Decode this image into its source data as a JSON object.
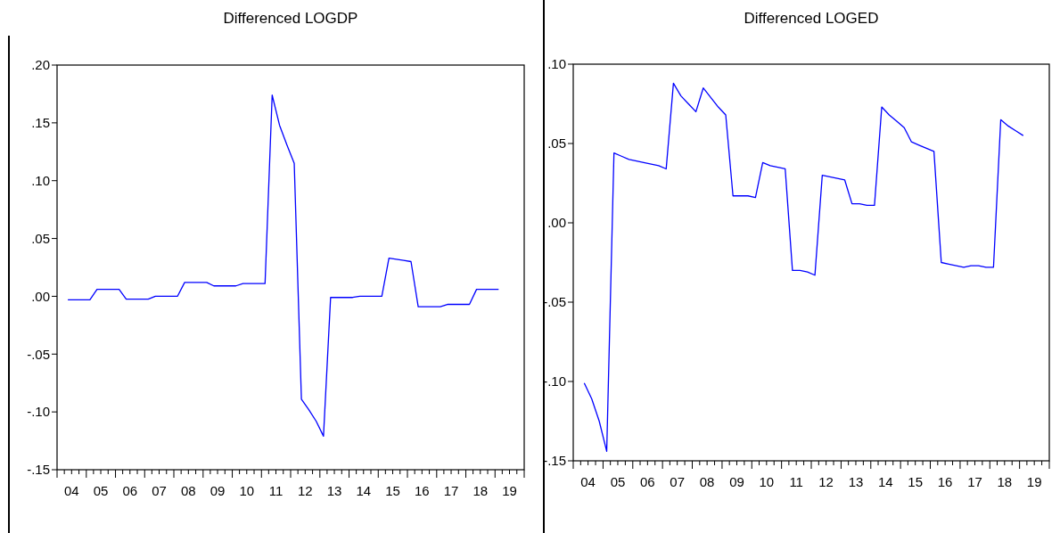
{
  "chart_data": [
    {
      "type": "line",
      "title": "Differenced LOGDP",
      "xlim": [
        "2004",
        "2020"
      ],
      "ylim": [
        -0.15,
        0.2
      ],
      "xticks": [
        {
          "value": "2004-07-01",
          "label": "04"
        },
        {
          "value": "2005-07-01",
          "label": "05"
        },
        {
          "value": "2006-07-01",
          "label": "06"
        },
        {
          "value": "2007-07-01",
          "label": "07"
        },
        {
          "value": "2008-07-01",
          "label": "08"
        },
        {
          "value": "2009-07-01",
          "label": "09"
        },
        {
          "value": "2010-07-01",
          "label": "10"
        },
        {
          "value": "2011-07-01",
          "label": "11"
        },
        {
          "value": "2012-07-01",
          "label": "12"
        },
        {
          "value": "2013-07-01",
          "label": "13"
        },
        {
          "value": "2014-07-01",
          "label": "14"
        },
        {
          "value": "2015-07-01",
          "label": "15"
        },
        {
          "value": "2016-07-01",
          "label": "16"
        },
        {
          "value": "2017-07-01",
          "label": "17"
        },
        {
          "value": "2018-07-01",
          "label": "18"
        },
        {
          "value": "2019-07-01",
          "label": "19"
        }
      ],
      "yticks": [
        {
          "value": -0.15,
          "label": "-.15"
        },
        {
          "value": -0.1,
          "label": "-.10"
        },
        {
          "value": -0.05,
          "label": "-.05"
        },
        {
          "value": 0,
          "label": ".00"
        },
        {
          "value": 0.05,
          "label": ".05"
        },
        {
          "value": 0.1,
          "label": ".10"
        },
        {
          "value": 0.15,
          "label": ".15"
        },
        {
          "value": 0.2,
          "label": ".20"
        }
      ],
      "grid": false,
      "marker": "none",
      "line_style": "solid",
      "x": [
        "2004-05-15",
        "2004-08-15",
        "2004-11-15",
        "2005-02-15",
        "2005-05-15",
        "2005-08-15",
        "2005-11-15",
        "2006-02-15",
        "2006-05-15",
        "2006-08-15",
        "2006-11-15",
        "2007-02-15",
        "2007-05-15",
        "2007-08-15",
        "2007-11-15",
        "2008-02-15",
        "2008-05-15",
        "2008-08-15",
        "2008-11-15",
        "2009-02-15",
        "2009-05-15",
        "2009-08-15",
        "2009-11-15",
        "2010-02-15",
        "2010-05-15",
        "2010-08-15",
        "2010-11-15",
        "2011-02-15",
        "2011-05-15",
        "2011-08-15",
        "2011-11-15",
        "2012-02-15",
        "2012-05-15",
        "2012-08-15",
        "2012-11-15",
        "2013-02-15",
        "2013-05-15",
        "2013-08-15",
        "2013-11-15",
        "2014-02-15",
        "2014-05-15",
        "2014-08-15",
        "2014-11-15",
        "2015-02-15",
        "2015-05-15",
        "2015-08-15",
        "2015-11-15",
        "2016-02-15",
        "2016-05-15",
        "2016-08-15",
        "2016-11-15",
        "2017-02-15",
        "2017-05-15",
        "2017-08-15",
        "2017-11-15",
        "2018-02-15",
        "2018-05-15",
        "2018-08-15",
        "2018-11-15",
        "2019-02-15"
      ],
      "series": [
        {
          "color": "#0000ff",
          "values": [
            -0.003,
            -0.003,
            -0.003,
            -0.003,
            0.006,
            0.006,
            0.006,
            0.006,
            -0.0025,
            -0.0025,
            -0.0025,
            -0.0025,
            0.0,
            0.0,
            0.0,
            0.0,
            0.012,
            0.012,
            0.012,
            0.012,
            0.009,
            0.009,
            0.009,
            0.009,
            0.011,
            0.011,
            0.011,
            0.011,
            0.174,
            0.148,
            0.131,
            0.115,
            -0.089,
            -0.098,
            -0.108,
            -0.121,
            -0.001,
            -0.001,
            -0.001,
            -0.001,
            0.0,
            0.0,
            0.0,
            0.0,
            0.033,
            0.032,
            0.031,
            0.03,
            -0.009,
            -0.009,
            -0.009,
            -0.009,
            -0.007,
            -0.007,
            -0.007,
            -0.007,
            0.006,
            0.006,
            0.006,
            0.006
          ]
        }
      ]
    },
    {
      "type": "line",
      "title": "Differenced LOGED",
      "xlim": [
        "2004",
        "2020"
      ],
      "ylim": [
        -0.15,
        0.1
      ],
      "xticks": [
        {
          "value": "2004-07-01",
          "label": "04"
        },
        {
          "value": "2005-07-01",
          "label": "05"
        },
        {
          "value": "2006-07-01",
          "label": "06"
        },
        {
          "value": "2007-07-01",
          "label": "07"
        },
        {
          "value": "2008-07-01",
          "label": "08"
        },
        {
          "value": "2009-07-01",
          "label": "09"
        },
        {
          "value": "2010-07-01",
          "label": "10"
        },
        {
          "value": "2011-07-01",
          "label": "11"
        },
        {
          "value": "2012-07-01",
          "label": "12"
        },
        {
          "value": "2013-07-01",
          "label": "13"
        },
        {
          "value": "2014-07-01",
          "label": "14"
        },
        {
          "value": "2015-07-01",
          "label": "15"
        },
        {
          "value": "2016-07-01",
          "label": "16"
        },
        {
          "value": "2017-07-01",
          "label": "17"
        },
        {
          "value": "2018-07-01",
          "label": "18"
        },
        {
          "value": "2019-07-01",
          "label": "19"
        }
      ],
      "yticks": [
        {
          "value": -0.15,
          "label": "-.15"
        },
        {
          "value": -0.1,
          "label": "-.10"
        },
        {
          "value": -0.05,
          "label": "-.05"
        },
        {
          "value": 0,
          "label": ".00"
        },
        {
          "value": 0.05,
          "label": ".05"
        },
        {
          "value": 0.1,
          "label": ".10"
        }
      ],
      "grid": false,
      "marker": "none",
      "line_style": "solid",
      "x": [
        "2004-05-15",
        "2004-08-15",
        "2004-11-15",
        "2005-02-15",
        "2005-05-15",
        "2005-08-15",
        "2005-11-15",
        "2006-02-15",
        "2006-05-15",
        "2006-08-15",
        "2006-11-15",
        "2007-02-15",
        "2007-05-15",
        "2007-08-15",
        "2007-11-15",
        "2008-02-15",
        "2008-05-15",
        "2008-08-15",
        "2008-11-15",
        "2009-02-15",
        "2009-05-15",
        "2009-08-15",
        "2009-11-15",
        "2010-02-15",
        "2010-05-15",
        "2010-08-15",
        "2010-11-15",
        "2011-02-15",
        "2011-05-15",
        "2011-08-15",
        "2011-11-15",
        "2012-02-15",
        "2012-05-15",
        "2012-08-15",
        "2012-11-15",
        "2013-02-15",
        "2013-05-15",
        "2013-08-15",
        "2013-11-15",
        "2014-02-15",
        "2014-05-15",
        "2014-08-15",
        "2014-11-15",
        "2015-02-15",
        "2015-05-15",
        "2015-08-15",
        "2015-11-15",
        "2016-02-15",
        "2016-05-15",
        "2016-08-15",
        "2016-11-15",
        "2017-02-15",
        "2017-05-15",
        "2017-08-15",
        "2017-11-15",
        "2018-02-15",
        "2018-05-15",
        "2018-08-15",
        "2018-11-15",
        "2019-02-15"
      ],
      "series": [
        {
          "color": "#0000ff",
          "values": [
            -0.101,
            -0.111,
            -0.125,
            -0.144,
            0.044,
            0.042,
            0.04,
            0.039,
            0.038,
            0.037,
            0.036,
            0.034,
            0.088,
            0.08,
            0.075,
            0.07,
            0.085,
            0.079,
            0.073,
            0.068,
            0.017,
            0.017,
            0.017,
            0.016,
            0.038,
            0.036,
            0.035,
            0.034,
            -0.03,
            -0.03,
            -0.031,
            -0.033,
            0.03,
            0.029,
            0.028,
            0.027,
            0.012,
            0.012,
            0.011,
            0.011,
            0.073,
            0.068,
            0.064,
            0.06,
            0.051,
            0.049,
            0.047,
            0.045,
            -0.025,
            -0.026,
            -0.027,
            -0.028,
            -0.027,
            -0.027,
            -0.028,
            -0.028,
            0.065,
            0.061,
            0.058,
            0.055
          ]
        }
      ]
    }
  ]
}
